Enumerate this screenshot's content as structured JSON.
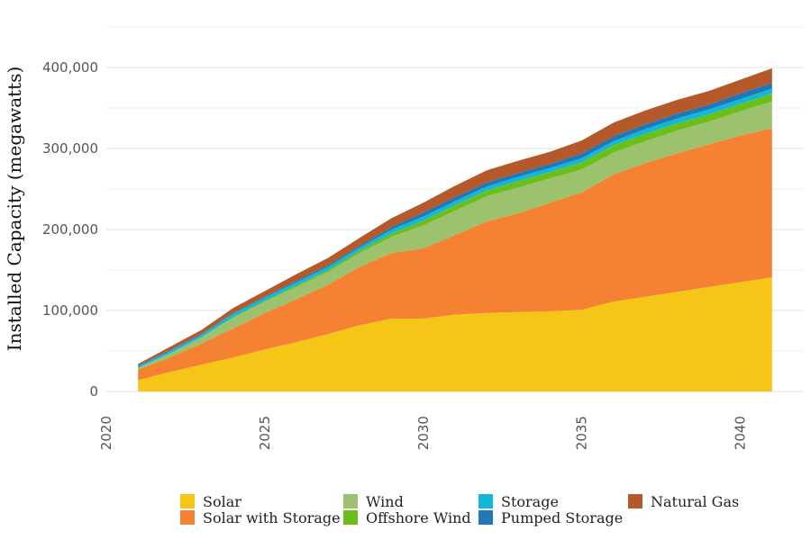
{
  "chart_data": {
    "type": "area",
    "ylabel": "Installed Capacity (megawatts)",
    "xlabel": "",
    "xlim": [
      2020,
      2042
    ],
    "ylim": [
      0,
      450000
    ],
    "x_ticks": [
      "2020",
      "2025",
      "2030",
      "2035",
      "2040"
    ],
    "y_ticks": [
      "0",
      "100,000",
      "200,000",
      "300,000",
      "400,000"
    ],
    "x": [
      2021,
      2022,
      2023,
      2024,
      2025,
      2026,
      2027,
      2028,
      2029,
      2030,
      2031,
      2032,
      2033,
      2034,
      2035,
      2036,
      2037,
      2038,
      2039,
      2040,
      2041
    ],
    "series": [
      {
        "name": "Solar",
        "color": "#F5C518",
        "values": [
          14000,
          24000,
          33000,
          42000,
          52000,
          61000,
          71000,
          82000,
          90000,
          90000,
          95000,
          97000,
          98000,
          99000,
          101000,
          111000,
          117000,
          123000,
          129000,
          135000,
          141000
        ]
      },
      {
        "name": "Solar with Storage",
        "color": "#F58233",
        "values": [
          13000,
          18000,
          26000,
          36000,
          45000,
          53000,
          61000,
          72000,
          81000,
          87000,
          98000,
          113000,
          122000,
          134000,
          145000,
          157000,
          165000,
          171000,
          176000,
          181000,
          184000
        ]
      },
      {
        "name": "Wind",
        "color": "#9CC26E",
        "values": [
          2000,
          5000,
          8000,
          13000,
          14000,
          15000,
          16000,
          17000,
          20000,
          28000,
          30000,
          31000,
          32000,
          30000,
          28000,
          27000,
          27000,
          28000,
          28000,
          30000,
          33000
        ]
      },
      {
        "name": "Offshore Wind",
        "color": "#6CBF1A",
        "values": [
          0,
          0,
          0,
          1000,
          1000,
          2000,
          2000,
          3000,
          4000,
          6000,
          7000,
          7000,
          8000,
          8000,
          9000,
          9000,
          9000,
          9000,
          9000,
          9000,
          10000
        ]
      },
      {
        "name": "Storage",
        "color": "#12B8D8",
        "values": [
          2000,
          3000,
          3000,
          4000,
          4000,
          4000,
          4000,
          4000,
          5000,
          5000,
          5000,
          5000,
          5000,
          5000,
          5000,
          5000,
          6000,
          6000,
          6000,
          6000,
          6000
        ]
      },
      {
        "name": "Pumped Storage",
        "color": "#1F78B8",
        "values": [
          1000,
          1000,
          1000,
          1000,
          1000,
          2000,
          2000,
          2000,
          3000,
          5000,
          5000,
          5000,
          5000,
          5000,
          6000,
          6000,
          6000,
          6000,
          6000,
          7000,
          7000
        ]
      },
      {
        "name": "Natural Gas",
        "color": "#B5582A",
        "values": [
          2000,
          4000,
          5000,
          6000,
          7000,
          8000,
          9000,
          10000,
          11000,
          12000,
          14000,
          15000,
          15000,
          15000,
          16000,
          17000,
          17000,
          17000,
          17000,
          17000,
          18000
        ]
      }
    ],
    "grid": true,
    "legend": "bottom"
  }
}
